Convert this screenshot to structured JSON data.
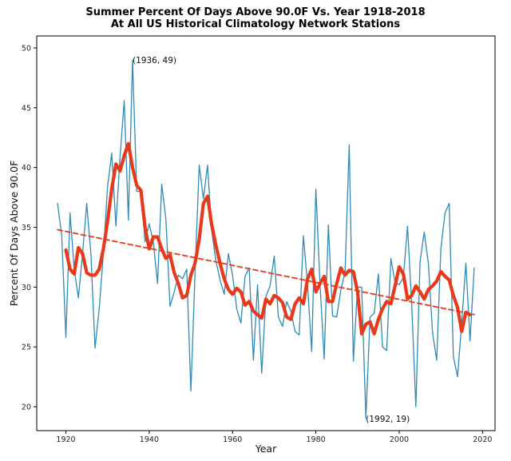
{
  "chart_data": {
    "type": "line",
    "title": "Summer Percent Of Days Above 90.0F Vs. Year 1918-2018",
    "subtitle": "At All US Historical Climatology Network Stations",
    "xlabel": "Year",
    "ylabel": "Percent Of Days Above 90.0F",
    "xlim": [
      1913,
      2023
    ],
    "ylim": [
      18,
      51
    ],
    "xticks": [
      1920,
      1940,
      1960,
      1980,
      2000,
      2020
    ],
    "yticks": [
      20,
      25,
      30,
      35,
      40,
      45,
      50
    ],
    "grid": false,
    "legend": "none",
    "annotations": [
      {
        "text": "(1936, 49)",
        "x": 1936,
        "y": 49
      },
      {
        "text": "(1992, 19)",
        "x": 1992,
        "y": 19
      }
    ],
    "series": [
      {
        "kind": "annual",
        "color": "#2f8ab5",
        "x": [
          1918,
          1919,
          1920,
          1921,
          1922,
          1923,
          1924,
          1925,
          1926,
          1927,
          1928,
          1929,
          1930,
          1931,
          1932,
          1933,
          1934,
          1935,
          1936,
          1937,
          1938,
          1939,
          1940,
          1941,
          1942,
          1943,
          1944,
          1945,
          1946,
          1947,
          1948,
          1949,
          1950,
          1951,
          1952,
          1953,
          1954,
          1955,
          1956,
          1957,
          1958,
          1959,
          1960,
          1961,
          1962,
          1963,
          1964,
          1965,
          1966,
          1967,
          1968,
          1969,
          1970,
          1971,
          1972,
          1973,
          1974,
          1975,
          1976,
          1977,
          1978,
          1979,
          1980,
          1981,
          1982,
          1983,
          1984,
          1985,
          1986,
          1987,
          1988,
          1989,
          1990,
          1991,
          1992,
          1993,
          1994,
          1995,
          1996,
          1997,
          1998,
          1999,
          2000,
          2001,
          2002,
          2003,
          2004,
          2005,
          2006,
          2007,
          2008,
          2009,
          2010,
          2011,
          2012,
          2013,
          2014,
          2015,
          2016,
          2017,
          2018
        ],
        "values": [
          37.0,
          34.3,
          25.8,
          36.2,
          31.5,
          29.1,
          32.8,
          37.0,
          32.8,
          24.9,
          28.2,
          32.8,
          38.4,
          41.2,
          35.1,
          40.9,
          45.6,
          35.6,
          49.0,
          38.0,
          38.0,
          33.8,
          35.3,
          33.7,
          30.3,
          38.6,
          35.7,
          28.4,
          29.6,
          31.0,
          30.7,
          31.5,
          21.3,
          31.2,
          40.2,
          37.4,
          40.2,
          34.7,
          32.2,
          30.6,
          29.4,
          32.8,
          31.0,
          28.2,
          27.0,
          30.9,
          31.6,
          23.9,
          30.2,
          22.8,
          29.2,
          30.1,
          32.6,
          27.5,
          26.7,
          28.8,
          28.0,
          26.3,
          26.0,
          34.3,
          30.2,
          24.6,
          38.2,
          30.2,
          24.0,
          35.2,
          27.6,
          27.5,
          29.8,
          31.2,
          41.9,
          23.8,
          30.0,
          30.0,
          19.0,
          27.5,
          27.8,
          31.1,
          25.0,
          24.7,
          32.4,
          30.4,
          30.2,
          30.8,
          35.1,
          28.5,
          20.0,
          32.1,
          34.6,
          32.0,
          26.2,
          23.9,
          33.2,
          36.2,
          37.0,
          24.2,
          22.5,
          27.0,
          32.0,
          25.5,
          31.6
        ]
      },
      {
        "kind": "smoothed",
        "color": "#e8391a",
        "x": [
          1920,
          1921,
          1922,
          1923,
          1924,
          1925,
          1926,
          1927,
          1928,
          1929,
          1930,
          1931,
          1932,
          1933,
          1934,
          1935,
          1936,
          1937,
          1938,
          1939,
          1940,
          1941,
          1942,
          1943,
          1944,
          1945,
          1946,
          1947,
          1948,
          1949,
          1950,
          1951,
          1952,
          1953,
          1954,
          1955,
          1956,
          1957,
          1958,
          1959,
          1960,
          1961,
          1962,
          1963,
          1964,
          1965,
          1966,
          1967,
          1968,
          1969,
          1970,
          1971,
          1972,
          1973,
          1974,
          1975,
          1976,
          1977,
          1978,
          1979,
          1980,
          1981,
          1982,
          1983,
          1984,
          1985,
          1986,
          1987,
          1988,
          1989,
          1990,
          1991,
          1992,
          1993,
          1994,
          1995,
          1996,
          1997,
          1998,
          1999,
          2000,
          2001,
          2002,
          2003,
          2004,
          2005,
          2006,
          2007,
          2008,
          2009,
          2010,
          2011,
          2012,
          2013,
          2014,
          2015,
          2016,
          2017
        ],
        "values": [
          33.1,
          31.5,
          31.1,
          33.3,
          32.8,
          31.2,
          31.0,
          31.0,
          31.5,
          33.2,
          35.5,
          38.2,
          40.3,
          39.7,
          41.0,
          42.0,
          40.0,
          38.5,
          38.1,
          35.0,
          33.2,
          34.2,
          34.2,
          33.2,
          32.4,
          32.7,
          31.2,
          30.3,
          29.1,
          29.3,
          31.0,
          32.0,
          34.0,
          37.0,
          37.6,
          35.2,
          33.5,
          32.0,
          30.7,
          29.8,
          29.4,
          29.9,
          29.6,
          28.5,
          28.8,
          28.0,
          27.7,
          27.4,
          29.0,
          28.6,
          29.3,
          29.1,
          28.7,
          27.5,
          27.3,
          28.6,
          29.1,
          28.6,
          30.7,
          31.5,
          29.6,
          30.3,
          30.9,
          28.8,
          28.8,
          30.3,
          31.6,
          31.0,
          31.4,
          31.3,
          29.6,
          26.1,
          26.9,
          27.1,
          26.1,
          27.3,
          28.2,
          28.8,
          28.6,
          30.1,
          31.7,
          31.1,
          29.0,
          29.3,
          30.1,
          29.6,
          29.0,
          29.8,
          30.1,
          30.5,
          31.3,
          30.9,
          30.6,
          29.3,
          28.3,
          26.3,
          27.9,
          27.7
        ]
      },
      {
        "kind": "trend",
        "color": "#e8391a",
        "x": [
          1918,
          2018
        ],
        "values": [
          34.8,
          27.7
        ]
      }
    ]
  }
}
